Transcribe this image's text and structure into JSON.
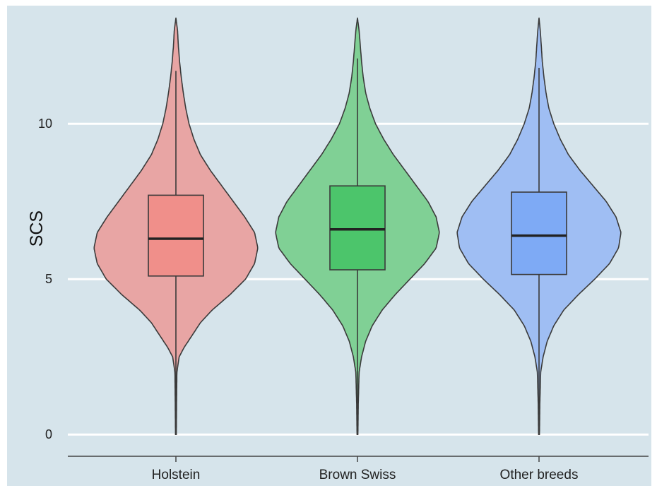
{
  "chart_data": {
    "type": "violin",
    "ylabel": "SCS",
    "ylim": [
      -0.7,
      13.8
    ],
    "yticks": [
      0,
      5,
      10
    ],
    "grid": true,
    "legend": "none",
    "colors": {
      "panel_background": "#d6e4eb",
      "gridline": "#ffffff",
      "outline": "#3a3a3a"
    },
    "categories": [
      "Holstein",
      "Brown Swiss",
      "Other breeds"
    ],
    "series": [
      {
        "category": "Holstein",
        "fill": "#e8a5a4",
        "box_fill": "#f08f8a",
        "min": 0,
        "q1": 5.1,
        "median": 6.3,
        "q3": 7.7,
        "whisker_high": 11.7,
        "max": 13.4,
        "density": [
          [
            0,
            0.005
          ],
          [
            1,
            0.008
          ],
          [
            2,
            0.012
          ],
          [
            2.5,
            0.04
          ],
          [
            2.8,
            0.1
          ],
          [
            3.2,
            0.2
          ],
          [
            3.6,
            0.3
          ],
          [
            4,
            0.44
          ],
          [
            4.5,
            0.66
          ],
          [
            5,
            0.85
          ],
          [
            5.5,
            0.96
          ],
          [
            6,
            1
          ],
          [
            6.5,
            0.96
          ],
          [
            7,
            0.84
          ],
          [
            7.5,
            0.7
          ],
          [
            8,
            0.56
          ],
          [
            8.5,
            0.42
          ],
          [
            9,
            0.3
          ],
          [
            9.5,
            0.22
          ],
          [
            10,
            0.16
          ],
          [
            10.5,
            0.12
          ],
          [
            11,
            0.09
          ],
          [
            11.5,
            0.065
          ],
          [
            12,
            0.045
          ],
          [
            12.5,
            0.03
          ],
          [
            13,
            0.02
          ],
          [
            13.4,
            0
          ]
        ]
      },
      {
        "category": "Brown Swiss",
        "fill": "#80d095",
        "box_fill": "#4cc56b",
        "min": 0,
        "q1": 5.3,
        "median": 6.6,
        "q3": 8.0,
        "whisker_high": 12.1,
        "max": 13.4,
        "density": [
          [
            0,
            0.005
          ],
          [
            1,
            0.01
          ],
          [
            2,
            0.02
          ],
          [
            2.5,
            0.05
          ],
          [
            3,
            0.1
          ],
          [
            3.5,
            0.18
          ],
          [
            4,
            0.3
          ],
          [
            4.5,
            0.46
          ],
          [
            5,
            0.64
          ],
          [
            5.5,
            0.82
          ],
          [
            6,
            0.96
          ],
          [
            6.5,
            1
          ],
          [
            7,
            0.96
          ],
          [
            7.5,
            0.86
          ],
          [
            8,
            0.72
          ],
          [
            8.5,
            0.58
          ],
          [
            9,
            0.44
          ],
          [
            9.5,
            0.32
          ],
          [
            10,
            0.22
          ],
          [
            10.5,
            0.15
          ],
          [
            11,
            0.1
          ],
          [
            11.5,
            0.07
          ],
          [
            12,
            0.05
          ],
          [
            12.5,
            0.035
          ],
          [
            13,
            0.02
          ],
          [
            13.4,
            0
          ]
        ]
      },
      {
        "category": "Other breeds",
        "fill": "#9fbef3",
        "box_fill": "#7eaaf5",
        "min": 0,
        "q1": 5.15,
        "median": 6.4,
        "q3": 7.8,
        "whisker_high": 11.8,
        "max": 13.4,
        "density": [
          [
            0,
            0.005
          ],
          [
            1,
            0.01
          ],
          [
            2,
            0.02
          ],
          [
            2.5,
            0.05
          ],
          [
            3,
            0.1
          ],
          [
            3.5,
            0.18
          ],
          [
            4,
            0.3
          ],
          [
            4.5,
            0.48
          ],
          [
            5,
            0.68
          ],
          [
            5.5,
            0.86
          ],
          [
            6,
            0.97
          ],
          [
            6.5,
            1
          ],
          [
            7,
            0.94
          ],
          [
            7.5,
            0.82
          ],
          [
            8,
            0.66
          ],
          [
            8.5,
            0.5
          ],
          [
            9,
            0.36
          ],
          [
            9.5,
            0.26
          ],
          [
            10,
            0.18
          ],
          [
            10.5,
            0.12
          ],
          [
            11,
            0.085
          ],
          [
            11.5,
            0.06
          ],
          [
            12,
            0.04
          ],
          [
            12.5,
            0.028
          ],
          [
            13,
            0.015
          ],
          [
            13.4,
            0
          ]
        ]
      }
    ]
  }
}
